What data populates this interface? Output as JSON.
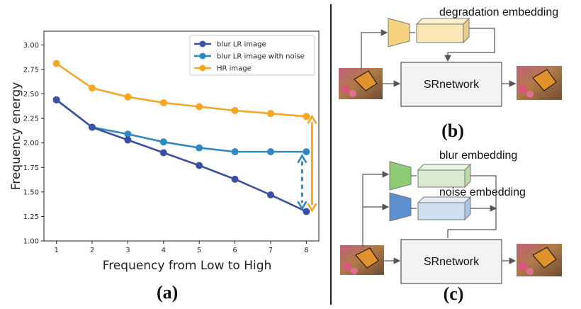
{
  "panel_a": {
    "label": "(a)"
  },
  "panel_b": {
    "label": "(b)",
    "embedding_label": "degradation  embedding",
    "network_label": "SRnetwork",
    "colors": {
      "encoder": "#f7d27e",
      "embedding": "#fbe7b5",
      "network": "#f2f2f2"
    }
  },
  "panel_c": {
    "label": "(c)",
    "blur_label": "blur embedding",
    "noise_label": "noise embedding",
    "network_label": "SRnetwork",
    "colors": {
      "blur_encoder": "#8fca76",
      "blur_embedding": "#d9ebd0",
      "noise_encoder": "#5b8fcf",
      "noise_embedding": "#cfe0f3",
      "network": "#f2f2f2"
    }
  },
  "chart_data": {
    "type": "line",
    "title": "",
    "xlabel": "Frequency from Low to High",
    "ylabel": "Frequency energy",
    "x": [
      1,
      2,
      3,
      4,
      5,
      6,
      7,
      8
    ],
    "xticks": [
      "1",
      "2",
      "3",
      "4",
      "5",
      "6",
      "7",
      "8"
    ],
    "yticks": [
      "1.00",
      "1.25",
      "1.50",
      "1.75",
      "2.00",
      "2.25",
      "2.50",
      "2.75",
      "3.00"
    ],
    "xlim": [
      0.65,
      8.35
    ],
    "ylim": [
      1.0,
      3.14
    ],
    "grid": false,
    "legend_position": "top-right",
    "series": [
      {
        "name": "blur LR image",
        "color": "#3a4fa5",
        "values": [
          2.44,
          2.16,
          2.03,
          1.9,
          1.77,
          1.63,
          1.47,
          1.3
        ]
      },
      {
        "name": "blur LR image with noise",
        "color": "#2f88c4",
        "values": [
          2.44,
          2.16,
          2.09,
          2.01,
          1.95,
          1.91,
          1.91,
          1.91
        ]
      },
      {
        "name": "HR image",
        "color": "#f5a623",
        "values": [
          2.81,
          2.56,
          2.47,
          2.41,
          2.37,
          2.33,
          2.3,
          2.27
        ]
      }
    ],
    "annotations": [
      {
        "type": "dashed-double-arrow",
        "color": "#2f88c4",
        "x": 8,
        "y_from": 1.33,
        "y_to": 1.87
      },
      {
        "type": "double-arrow",
        "color": "#f5a623",
        "x": 8,
        "y_from": 1.31,
        "y_to": 2.27
      }
    ]
  }
}
